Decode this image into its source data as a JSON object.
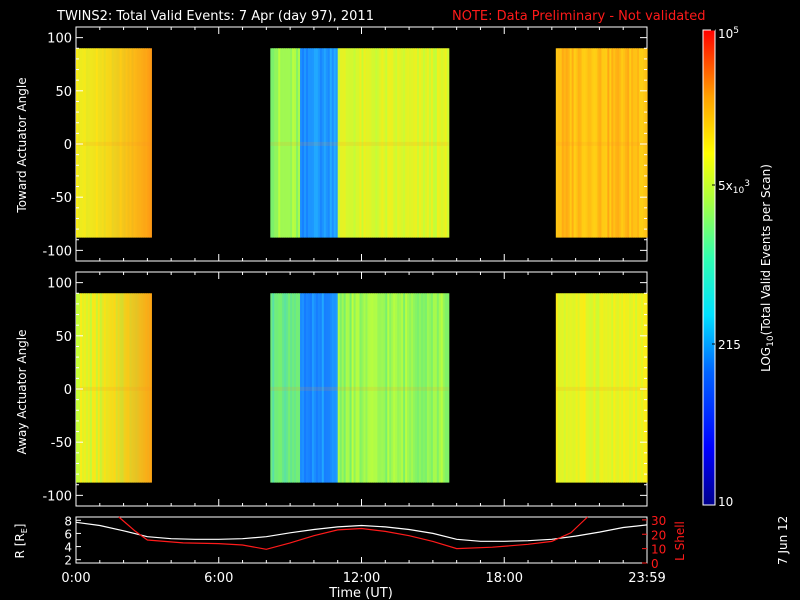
{
  "title": "TWINS2: Total Valid Events:  7 Apr (day  97), 2011",
  "note": "NOTE: Data Preliminary - Not validated",
  "side_date": "7 Jun 12",
  "colors": {
    "text": "#ffffff",
    "note": "#ff1a1a",
    "background": "#000000"
  },
  "chart_data": [
    {
      "type": "heatmap",
      "ylabel": "Toward Actuator Angle",
      "ylim": [
        -110,
        110
      ],
      "yticks": [
        "100",
        "50",
        "0",
        "-50",
        "-100"
      ],
      "data_extent_y": [
        -88,
        90
      ],
      "segments": [
        {
          "t_start": "00:00",
          "t_end": "03:10",
          "level": "orange-yellow, increasing to orange at end"
        },
        {
          "t_start": "08:10",
          "t_end": "15:40",
          "level": "green-yellow with cyan/blue band 09:30-11:00"
        },
        {
          "t_start": "20:10",
          "t_end": "24:00",
          "level": "orange-yellow"
        }
      ]
    },
    {
      "type": "heatmap",
      "ylabel": "Away Actuator Angle",
      "ylim": [
        -110,
        110
      ],
      "yticks": [
        "100",
        "50",
        "0",
        "-50",
        "-100"
      ],
      "data_extent_y": [
        -88,
        90
      ],
      "segments": [
        {
          "t_start": "00:00",
          "t_end": "03:10",
          "level": "green-yellow to orange"
        },
        {
          "t_start": "08:10",
          "t_end": "15:40",
          "level": "green with cyan/blue band 09:30-11:00"
        },
        {
          "t_start": "20:10",
          "t_end": "24:00",
          "level": "yellow-orange"
        }
      ]
    },
    {
      "type": "line",
      "ylabel": "R [Rₑ]",
      "ylabel_right": "L Shell",
      "yticks_left": [
        "8",
        "6",
        "4",
        "2"
      ],
      "yticks_right": [
        "30",
        "20",
        "10",
        "0"
      ],
      "ylim_left": [
        1.5,
        8.5
      ],
      "ylim_right": [
        0,
        32
      ],
      "series": [
        {
          "name": "R [Rₑ]",
          "color": "#ffffff",
          "x": [
            0,
            1,
            2,
            3,
            4,
            5,
            6,
            7,
            8,
            9,
            10,
            11,
            12,
            13,
            14,
            15,
            16,
            17,
            18,
            19,
            20,
            21,
            22,
            23,
            24
          ],
          "y": [
            7.7,
            7.2,
            6.4,
            5.5,
            5.2,
            5.1,
            5.1,
            5.2,
            5.5,
            6.1,
            6.6,
            7.0,
            7.2,
            7.0,
            6.6,
            6.0,
            5.1,
            4.8,
            4.8,
            4.9,
            5.1,
            5.6,
            6.2,
            6.9,
            7.3
          ]
        },
        {
          "name": "L Shell",
          "color": "#ff1a1a",
          "x": [
            1.8,
            2.5,
            3.0,
            4.5,
            6.0,
            7.0,
            8.0,
            9.0,
            10.0,
            11.0,
            12.0,
            13.0,
            14.0,
            15.0,
            16.0,
            17.5,
            19.0,
            20.0,
            20.8,
            21.5
          ],
          "y": [
            32,
            22,
            16,
            14,
            13.5,
            12.5,
            9.5,
            14,
            19,
            23,
            24,
            22,
            19,
            15,
            10,
            11,
            13,
            15,
            21,
            32
          ]
        }
      ]
    }
  ],
  "colorbar": {
    "label": "LOG10(Total Valid Events per Scan)",
    "ticks": [
      "10^5",
      "5x10^3",
      "215",
      "10"
    ]
  },
  "x_axis": {
    "ticks": [
      "0:00",
      "6:00",
      "12:00",
      "18:00",
      "23:59"
    ],
    "title": "Time (UT)"
  }
}
